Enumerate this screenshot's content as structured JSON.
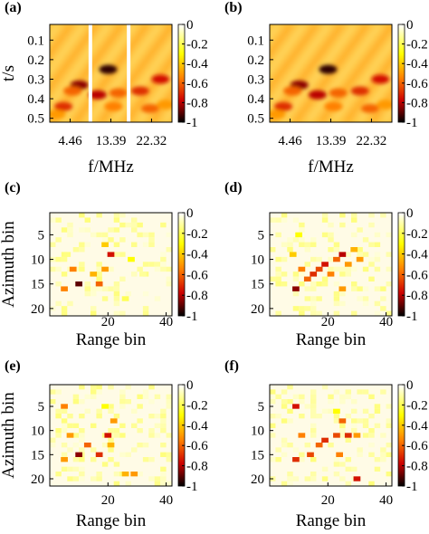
{
  "chart_data": [
    {
      "type": "heatmap",
      "panel_label": "(a)",
      "xlabel": "f/MHz",
      "ylabel": "t/s",
      "x_ticks": [
        "4.46",
        "13.39",
        "22.32"
      ],
      "y_ticks": [
        "0.1",
        "0.2",
        "0.3",
        "0.4",
        "0.5"
      ],
      "x_range": [
        0,
        26.8
      ],
      "y_range": [
        0.02,
        0.52
      ],
      "colorbar_ticks": [
        "0",
        "-0.2",
        "-0.4",
        "-0.6",
        "-0.8",
        "-1"
      ],
      "colorbar_range": [
        -1,
        0
      ],
      "gaps_at_x": [
        8.9,
        17.3
      ],
      "grid": false,
      "values": [
        {
          "x": 6.5,
          "y": 0.33,
          "v": -0.85
        },
        {
          "x": 5.0,
          "y": 0.36,
          "v": -0.6
        },
        {
          "x": 3.0,
          "y": 0.44,
          "v": -0.7
        },
        {
          "x": 12.8,
          "y": 0.25,
          "v": -0.95
        },
        {
          "x": 10.5,
          "y": 0.38,
          "v": -0.8
        },
        {
          "x": 15.0,
          "y": 0.37,
          "v": -0.6
        },
        {
          "x": 19.8,
          "y": 0.36,
          "v": -0.7
        },
        {
          "x": 24.3,
          "y": 0.3,
          "v": -0.75
        },
        {
          "x": 22.0,
          "y": 0.45,
          "v": -0.6
        },
        {
          "x": 14.0,
          "y": 0.44,
          "v": -0.55
        },
        {
          "x": 1.5,
          "y": 0.48,
          "v": -0.5
        },
        {
          "x": 25.5,
          "y": 0.43,
          "v": -0.5
        }
      ]
    },
    {
      "type": "heatmap",
      "panel_label": "(b)",
      "xlabel": "f/MHz",
      "ylabel": "",
      "x_ticks": [
        "4.46",
        "13.39",
        "22.32"
      ],
      "y_ticks": [
        "0.1",
        "0.2",
        "0.3",
        "0.4",
        "0.5"
      ],
      "x_range": [
        0,
        26.8
      ],
      "y_range": [
        0.02,
        0.52
      ],
      "colorbar_ticks": [
        "0",
        "-0.2",
        "-0.4",
        "-0.6",
        "-0.8",
        "-1"
      ],
      "colorbar_range": [
        -1,
        0
      ],
      "gaps_at_x": [],
      "grid": false,
      "values": [
        {
          "x": 6.5,
          "y": 0.33,
          "v": -0.85
        },
        {
          "x": 5.0,
          "y": 0.36,
          "v": -0.6
        },
        {
          "x": 3.0,
          "y": 0.44,
          "v": -0.7
        },
        {
          "x": 12.8,
          "y": 0.25,
          "v": -0.95
        },
        {
          "x": 10.5,
          "y": 0.38,
          "v": -0.8
        },
        {
          "x": 15.0,
          "y": 0.37,
          "v": -0.6
        },
        {
          "x": 19.8,
          "y": 0.36,
          "v": -0.7
        },
        {
          "x": 24.3,
          "y": 0.3,
          "v": -0.75
        },
        {
          "x": 22.0,
          "y": 0.45,
          "v": -0.6
        },
        {
          "x": 14.0,
          "y": 0.44,
          "v": -0.55
        },
        {
          "x": 1.5,
          "y": 0.48,
          "v": -0.5
        },
        {
          "x": 25.5,
          "y": 0.43,
          "v": -0.5
        }
      ]
    },
    {
      "type": "heatmap",
      "panel_label": "(c)",
      "xlabel": "Range bin",
      "ylabel": "Azimuth bin",
      "x_ticks": [
        "20",
        "40"
      ],
      "y_ticks": [
        "5",
        "10",
        "15",
        "20"
      ],
      "x_range": [
        0,
        42
      ],
      "y_range": [
        0.5,
        21.5
      ],
      "colorbar_ticks": [
        "0",
        "-0.2",
        "-0.4",
        "-0.6",
        "-0.8",
        "-1"
      ],
      "colorbar_range": [
        -1,
        0
      ],
      "grid": false,
      "values": [
        {
          "x": 5,
          "y": 16,
          "v": -0.55
        },
        {
          "x": 8,
          "y": 12,
          "v": -0.55
        },
        {
          "x": 10,
          "y": 15,
          "v": -0.9
        },
        {
          "x": 15,
          "y": 13,
          "v": -0.45
        },
        {
          "x": 17,
          "y": 15,
          "v": -0.6
        },
        {
          "x": 19,
          "y": 12,
          "v": -0.5
        },
        {
          "x": 21,
          "y": 9,
          "v": -0.75
        },
        {
          "x": 19,
          "y": 7,
          "v": -0.4
        },
        {
          "x": 28,
          "y": 10,
          "v": -0.3
        },
        {
          "x": 26,
          "y": 18,
          "v": -0.2
        },
        {
          "x": 6,
          "y": 9,
          "v": -0.15
        },
        {
          "x": 32,
          "y": 13,
          "v": -0.12
        }
      ]
    },
    {
      "type": "heatmap",
      "panel_label": "(d)",
      "xlabel": "Range bin",
      "ylabel": "",
      "x_ticks": [
        "20",
        "40"
      ],
      "y_ticks": [
        "5",
        "10",
        "15",
        "20"
      ],
      "x_range": [
        0,
        42
      ],
      "y_range": [
        0.5,
        21.5
      ],
      "colorbar_ticks": [
        "0",
        "-0.2",
        "-0.4",
        "-0.6",
        "-0.8",
        "-1"
      ],
      "colorbar_range": [
        -1,
        0
      ],
      "grid": false,
      "values": [
        {
          "x": 9,
          "y": 16,
          "v": -0.85
        },
        {
          "x": 11,
          "y": 12,
          "v": -0.55
        },
        {
          "x": 13,
          "y": 14,
          "v": -0.6
        },
        {
          "x": 15,
          "y": 13,
          "v": -0.7
        },
        {
          "x": 17,
          "y": 12,
          "v": -0.65
        },
        {
          "x": 19,
          "y": 11,
          "v": -0.75
        },
        {
          "x": 21,
          "y": 13,
          "v": -0.55
        },
        {
          "x": 23,
          "y": 10,
          "v": -0.6
        },
        {
          "x": 25,
          "y": 9,
          "v": -0.8
        },
        {
          "x": 27,
          "y": 11,
          "v": -0.5
        },
        {
          "x": 25,
          "y": 16,
          "v": -0.5
        },
        {
          "x": 29,
          "y": 8,
          "v": -0.45
        },
        {
          "x": 31,
          "y": 10,
          "v": -0.5
        },
        {
          "x": 8,
          "y": 9,
          "v": -0.4
        },
        {
          "x": 10,
          "y": 5,
          "v": -0.3
        }
      ]
    },
    {
      "type": "heatmap",
      "panel_label": "(e)",
      "xlabel": "Range bin",
      "ylabel": "Azimuth bin",
      "x_ticks": [
        "20",
        "40"
      ],
      "y_ticks": [
        "5",
        "10",
        "15",
        "20"
      ],
      "x_range": [
        0,
        42
      ],
      "y_range": [
        0.5,
        21.5
      ],
      "colorbar_ticks": [
        "0",
        "-0.2",
        "-0.4",
        "-0.6",
        "-0.8",
        "-1"
      ],
      "colorbar_range": [
        -1,
        0
      ],
      "grid": false,
      "values": [
        {
          "x": 5,
          "y": 5,
          "v": -0.55
        },
        {
          "x": 7,
          "y": 11,
          "v": -0.5
        },
        {
          "x": 5,
          "y": 16,
          "v": -0.5
        },
        {
          "x": 10,
          "y": 15,
          "v": -0.85
        },
        {
          "x": 13,
          "y": 13,
          "v": -0.6
        },
        {
          "x": 17,
          "y": 15,
          "v": -0.7
        },
        {
          "x": 20,
          "y": 11,
          "v": -0.75
        },
        {
          "x": 22,
          "y": 8,
          "v": -0.5
        },
        {
          "x": 21,
          "y": 13,
          "v": -0.45
        },
        {
          "x": 26,
          "y": 19,
          "v": -0.45
        },
        {
          "x": 29,
          "y": 19,
          "v": -0.5
        },
        {
          "x": 19,
          "y": 5,
          "v": -0.3
        }
      ]
    },
    {
      "type": "heatmap",
      "panel_label": "(f)",
      "xlabel": "Range bin",
      "ylabel": "",
      "x_ticks": [
        "20",
        "40"
      ],
      "y_ticks": [
        "5",
        "10",
        "15",
        "20"
      ],
      "x_range": [
        0,
        42
      ],
      "y_range": [
        0.5,
        21.5
      ],
      "colorbar_ticks": [
        "0",
        "-0.2",
        "-0.4",
        "-0.6",
        "-0.8",
        "-1"
      ],
      "colorbar_range": [
        -1,
        0
      ],
      "grid": false,
      "values": [
        {
          "x": 9,
          "y": 5,
          "v": -0.75
        },
        {
          "x": 11,
          "y": 11,
          "v": -0.55
        },
        {
          "x": 9,
          "y": 16,
          "v": -0.7
        },
        {
          "x": 14,
          "y": 15,
          "v": -0.65
        },
        {
          "x": 17,
          "y": 13,
          "v": -0.6
        },
        {
          "x": 19,
          "y": 12,
          "v": -0.7
        },
        {
          "x": 23,
          "y": 11,
          "v": -0.65
        },
        {
          "x": 25,
          "y": 8,
          "v": -0.6
        },
        {
          "x": 27,
          "y": 11,
          "v": -0.7
        },
        {
          "x": 30,
          "y": 11,
          "v": -0.5
        },
        {
          "x": 24,
          "y": 15,
          "v": -0.55
        },
        {
          "x": 30,
          "y": 20,
          "v": -0.75
        },
        {
          "x": 23,
          "y": 6,
          "v": -0.3
        }
      ]
    }
  ]
}
